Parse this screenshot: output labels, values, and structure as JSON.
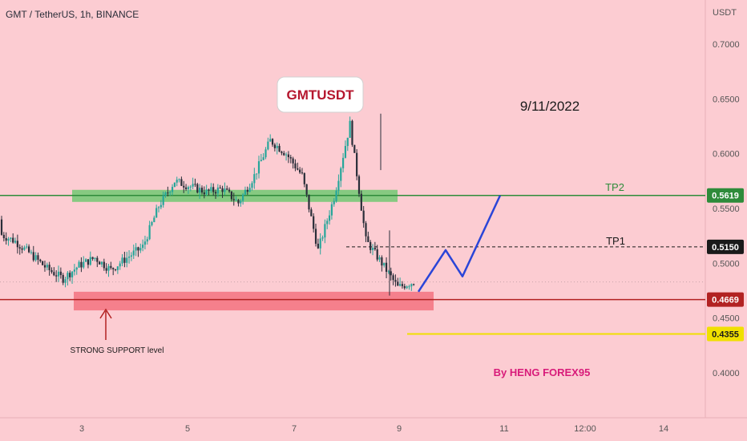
{
  "chart_data": {
    "type": "candlestick",
    "title": "GMT / TetherUS, 1h, BINANCE",
    "currency_label": "USDT",
    "colors": {
      "background": "#fcccd2",
      "up": "#26a69a",
      "down": "#2a2e39",
      "tp2_line": "#2e8b3a",
      "support_line": "#b22222",
      "yellow_line": "#f0e000",
      "projection": "#2a45d8",
      "support_zone": "#f47a86",
      "resistance_zone": "#7cc97a"
    },
    "y_range": [
      0.38,
      0.72
    ],
    "y_ticks": [
      "0.7000",
      "0.6500",
      "0.6000",
      "0.5500",
      "0.5000",
      "0.4500",
      "0.4000"
    ],
    "x_ticks": [
      "3",
      "5",
      "7",
      "9",
      "11",
      "12:00",
      "14"
    ],
    "price_path": [
      [
        0.54,
        0.527
      ],
      [
        0.525,
        0.52
      ],
      [
        0.513,
        0.508
      ],
      [
        0.505,
        0.495
      ],
      [
        0.49,
        0.486
      ],
      [
        0.478,
        0.498
      ],
      [
        0.509,
        0.505
      ],
      [
        0.501,
        0.494
      ],
      [
        0.497,
        0.505
      ],
      [
        0.507,
        0.515
      ],
      [
        0.53,
        0.552
      ],
      [
        0.569,
        0.575
      ],
      [
        0.567,
        0.57
      ],
      [
        0.575,
        0.565
      ],
      [
        0.57,
        0.568
      ],
      [
        0.565,
        0.555
      ],
      [
        0.572,
        0.58
      ],
      [
        0.59,
        0.612
      ],
      [
        0.61,
        0.6
      ],
      [
        0.592,
        0.58
      ],
      [
        0.555,
        0.512
      ],
      [
        0.531,
        0.56
      ],
      [
        0.575,
        0.627
      ],
      [
        0.59,
        0.521
      ],
      [
        0.512,
        0.5
      ],
      [
        0.49,
        0.478
      ],
      [
        0.476,
        0.483
      ]
    ],
    "levels": [
      {
        "name": "TP2",
        "label": "TP2",
        "value": 0.5619,
        "value_label": "0.5619"
      },
      {
        "name": "TP1",
        "label": "TP1",
        "value": 0.515,
        "value_label": "0.5150"
      },
      {
        "name": "support",
        "label": "",
        "value": 0.4669,
        "value_label": "0.4669"
      },
      {
        "name": "yellow",
        "label": "",
        "value": 0.4355,
        "value_label": "0.4355"
      }
    ],
    "zones": [
      {
        "name": "resistance-zone",
        "low": 0.556,
        "high": 0.567
      },
      {
        "name": "support-zone",
        "low": 0.457,
        "high": 0.474
      }
    ],
    "projection_path": [
      0.474,
      0.512,
      0.488,
      0.5619
    ],
    "annotations": {
      "badge": "GMTUSDT",
      "date": "9/11/2022",
      "support_label": "STRONG SUPPORT level",
      "author": "By HENG FOREX95",
      "tp1": "TP1",
      "tp2": "TP2"
    }
  }
}
